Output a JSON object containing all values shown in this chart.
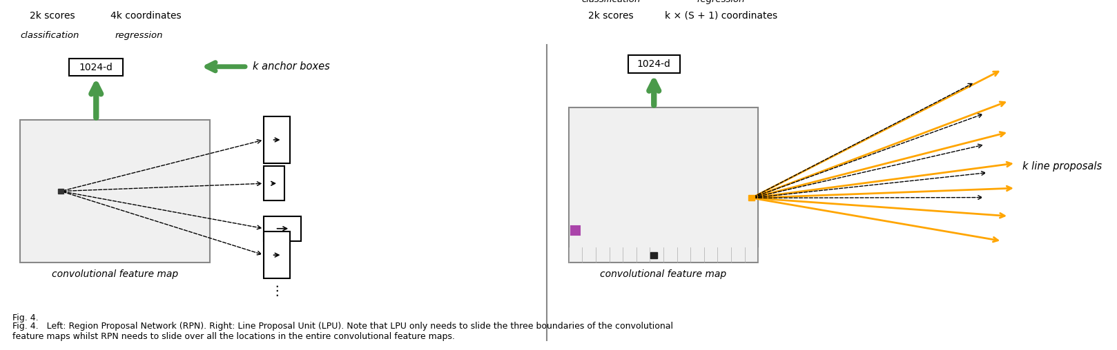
{
  "bg_color": "#ffffff",
  "grid_color": "#cccccc",
  "box_color": "#ffffff",
  "box_edge_color": "#000000",
  "green_color": "#3a7d3a",
  "green_arrow_color": "#4a9a4a",
  "orange_color": "#FFA500",
  "dashed_color": "#000000",
  "text_color": "#000000",
  "fig_caption": "Fig. 4.   Left: Region Proposal Network (RPN). Right: Line Proposal Unit (LPU). Note that LPU only needs to slide the three boundaries of the convolutional\nfeature maps whilst RPN needs to slide over all the locations in the entire convolutional feature maps.",
  "left_label_2k": "2k scores",
  "left_label_4k": "4k coordinates",
  "left_label_anchor": "k anchor boxes",
  "left_label_1024": "1024-d",
  "left_label_class": "classification",
  "left_label_reg": "regression",
  "left_label_map": "convolutional feature map",
  "right_label_class": "classification",
  "right_label_reg": "regression",
  "right_label_2k": "2k scores",
  "right_label_kS": "k × (S + 1) coordinates",
  "right_label_1024": "1024-d",
  "right_label_map": "convolutional feature map",
  "right_label_kline": "k line proposals",
  "divider_color": "#888888"
}
